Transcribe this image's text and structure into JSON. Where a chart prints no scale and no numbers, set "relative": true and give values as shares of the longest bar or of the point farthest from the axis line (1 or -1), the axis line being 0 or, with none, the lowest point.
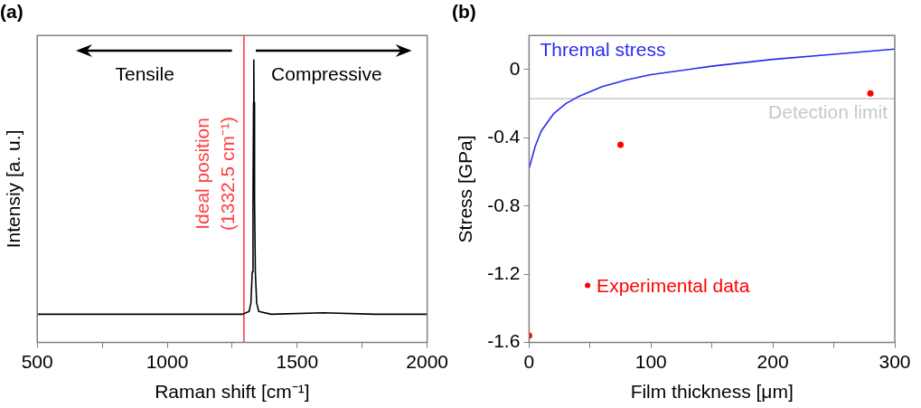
{
  "chart_data": [
    {
      "type": "line",
      "title": "(a)",
      "xlabel": "Raman shift [cm⁻¹]",
      "ylabel": "Intensiy [a. u.]",
      "relative": true,
      "xlim": [
        500,
        2000
      ],
      "xticks": [
        500,
        {
          "value": 750,
          "label": null
        },
        1000,
        {
          "value": 1250,
          "label": null
        },
        1500,
        {
          "value": 1750,
          "label": null
        },
        2000
      ],
      "series": [
        {
          "color": "#000000",
          "x": [
            500,
            700,
            900,
            1100,
            1290,
            1315,
            1322,
            1327,
            1330,
            1332,
            1333,
            1334,
            1336,
            1339,
            1344,
            1352,
            1400,
            1600,
            1800,
            2000
          ],
          "values": [
            0.1,
            0.1,
            0.1,
            0.1,
            0.1,
            0.11,
            0.14,
            0.25,
            0.5,
            0.85,
            1,
            0.85,
            0.5,
            0.25,
            0.14,
            0.11,
            0.1,
            0.105,
            0.1,
            0.1
          ]
        }
      ],
      "ref_lines": [
        {
          "axis": "x",
          "value": 1295,
          "label": "Ideal position\n(1332.5 cm⁻¹)",
          "color": "#ff4040"
        }
      ],
      "annotations": [
        "Tensile",
        "Compressive"
      ]
    },
    {
      "type": "line",
      "title": "(b)",
      "xlabel": "Film thickness [μm]",
      "ylabel": "Stress [GPa]",
      "xlim": [
        0,
        300
      ],
      "xticks": [
        0,
        {
          "value": 50,
          "label": null
        },
        100,
        {
          "value": 150,
          "label": null
        },
        200,
        {
          "value": 250,
          "label": null
        },
        300
      ],
      "ylim": [
        -1.6,
        0.2
      ],
      "yticks": [
        -1.6,
        -1.2,
        -0.8,
        -0.4,
        0
      ],
      "series": [
        {
          "name": "Thremal stress",
          "color": "#2a2af0",
          "x": [
            0,
            5,
            10,
            20,
            30,
            40,
            60,
            80,
            100,
            150,
            200,
            250,
            300
          ],
          "values": [
            -0.58,
            -0.45,
            -0.36,
            -0.26,
            -0.2,
            -0.16,
            -0.1,
            -0.06,
            -0.03,
            0.02,
            0.06,
            0.09,
            0.12
          ]
        },
        {
          "name": "Experimental data",
          "type": "scatter",
          "color": "#ff0000",
          "marker": "circle",
          "x": [
            0,
            75,
            280
          ],
          "values": [
            -1.56,
            -0.44,
            -0.14
          ]
        }
      ],
      "ref_lines": [
        {
          "axis": "y",
          "value": -0.17,
          "label": "Detection limit",
          "color": "#c8c8c8"
        }
      ]
    }
  ]
}
